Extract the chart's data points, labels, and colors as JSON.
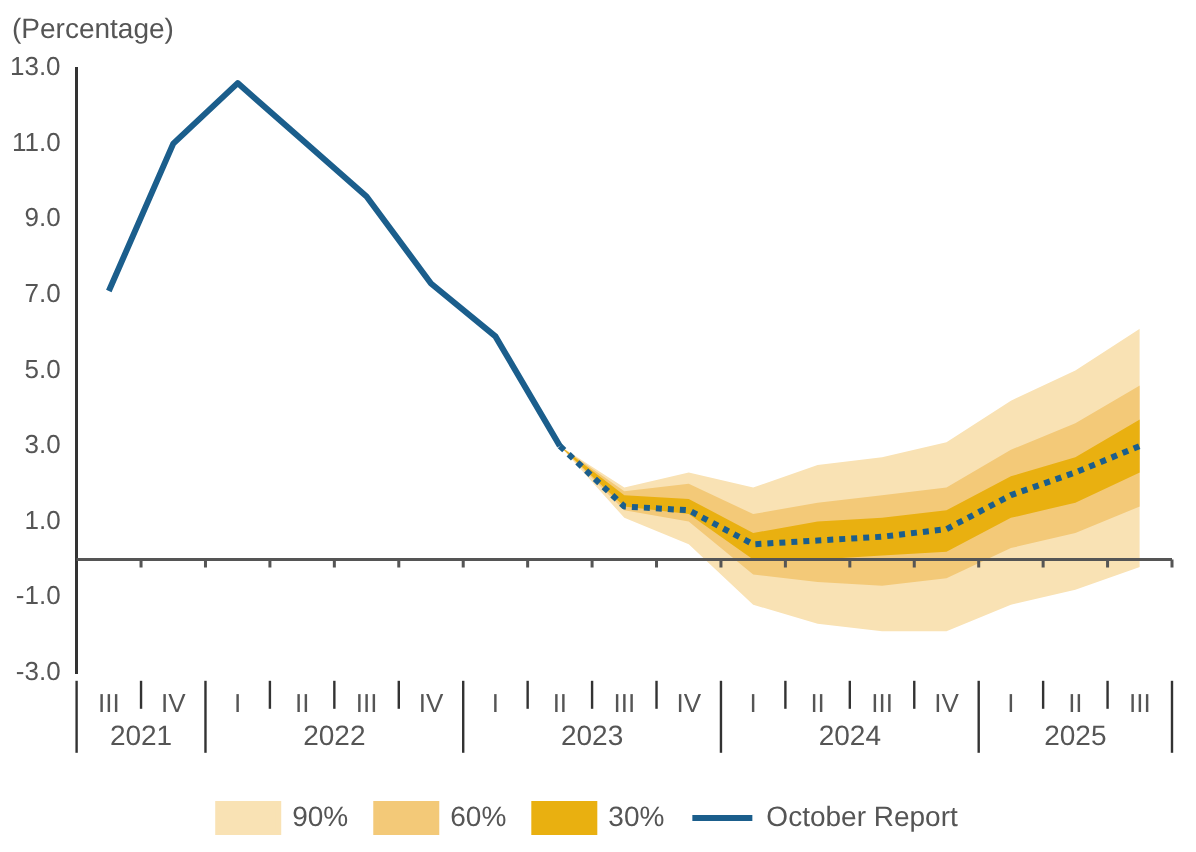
{
  "chart_data": {
    "type": "line",
    "ylabel": "(Percentage)",
    "categories": [
      "III",
      "IV",
      "I",
      "II",
      "III",
      "IV",
      "I",
      "II",
      "III",
      "IV",
      "I",
      "II",
      "III",
      "IV",
      "I",
      "II",
      "III"
    ],
    "ylim": [
      -3,
      13
    ],
    "yticks": [
      {
        "value": 13,
        "label": "13.0"
      },
      {
        "value": 11,
        "label": "11.0"
      },
      {
        "value": 9,
        "label": "9.0"
      },
      {
        "value": 7,
        "label": "7.0"
      },
      {
        "value": 5,
        "label": "5.0"
      },
      {
        "value": 3,
        "label": "3.0"
      },
      {
        "value": 1,
        "label": "1.0"
      },
      {
        "value": -1,
        "label": "-1.0"
      },
      {
        "value": -3,
        "label": "-3.0"
      }
    ],
    "series": [
      {
        "name": "90%",
        "color": "#f9e2b4",
        "values": [
          null,
          null,
          null,
          null,
          null,
          null,
          null,
          null,
          null,
          null,
          null,
          null,
          null,
          null,
          null,
          null,
          null
        ],
        "lower": [
          null,
          null,
          null,
          null,
          null,
          null,
          null,
          3.0,
          1.1,
          0.4,
          -1.2,
          -1.7,
          -1.9,
          -1.9,
          -1.2,
          -0.8,
          -0.2
        ],
        "upper": [
          null,
          null,
          null,
          null,
          null,
          null,
          null,
          3.0,
          1.9,
          2.3,
          1.9,
          2.5,
          2.7,
          3.1,
          4.2,
          5.0,
          6.1
        ]
      },
      {
        "name": "60%",
        "color": "#f3c978",
        "values": [
          null,
          null,
          null,
          null,
          null,
          null,
          null,
          null,
          null,
          null,
          null,
          null,
          null,
          null,
          null,
          null,
          null
        ],
        "lower": [
          null,
          null,
          null,
          null,
          null,
          null,
          null,
          3.0,
          1.3,
          1.0,
          -0.4,
          -0.6,
          -0.7,
          -0.5,
          0.3,
          0.7,
          1.4
        ],
        "upper": [
          null,
          null,
          null,
          null,
          null,
          null,
          null,
          3.0,
          1.8,
          2.0,
          1.2,
          1.5,
          1.7,
          1.9,
          2.9,
          3.6,
          4.6
        ]
      },
      {
        "name": "30%",
        "color": "#e9b010",
        "values": [
          null,
          null,
          null,
          null,
          null,
          null,
          null,
          null,
          null,
          null,
          null,
          null,
          null,
          null,
          null,
          null,
          null
        ],
        "lower": [
          null,
          null,
          null,
          null,
          null,
          null,
          null,
          3.0,
          1.4,
          1.2,
          0.0,
          0.0,
          0.1,
          0.2,
          1.1,
          1.5,
          2.3
        ],
        "upper": [
          null,
          null,
          null,
          null,
          null,
          null,
          null,
          3.0,
          1.7,
          1.6,
          0.7,
          1.0,
          1.1,
          1.3,
          2.2,
          2.7,
          3.7
        ]
      },
      {
        "name": "October Report",
        "color": "#1b5e8c",
        "line_style": "solid",
        "values": [
          7.1,
          11.0,
          12.6,
          11.1,
          9.6,
          7.3,
          5.9,
          3.0,
          null,
          null,
          null,
          null,
          null,
          null,
          null,
          null,
          null
        ]
      },
      {
        "color": "#1b5e8c",
        "line_style": "dotted",
        "values": [
          null,
          null,
          null,
          null,
          null,
          null,
          null,
          3.0,
          1.4,
          1.3,
          0.4,
          0.5,
          0.6,
          0.8,
          1.7,
          2.3,
          3.0
        ]
      }
    ],
    "ref_lines": [
      {
        "axis": "y",
        "value": 0,
        "color": "#555555"
      }
    ],
    "annotations": [
      "2021",
      "2022",
      "2023",
      "2024",
      "2025"
    ],
    "legend": "bottom",
    "marker": "none",
    "grid": false
  }
}
